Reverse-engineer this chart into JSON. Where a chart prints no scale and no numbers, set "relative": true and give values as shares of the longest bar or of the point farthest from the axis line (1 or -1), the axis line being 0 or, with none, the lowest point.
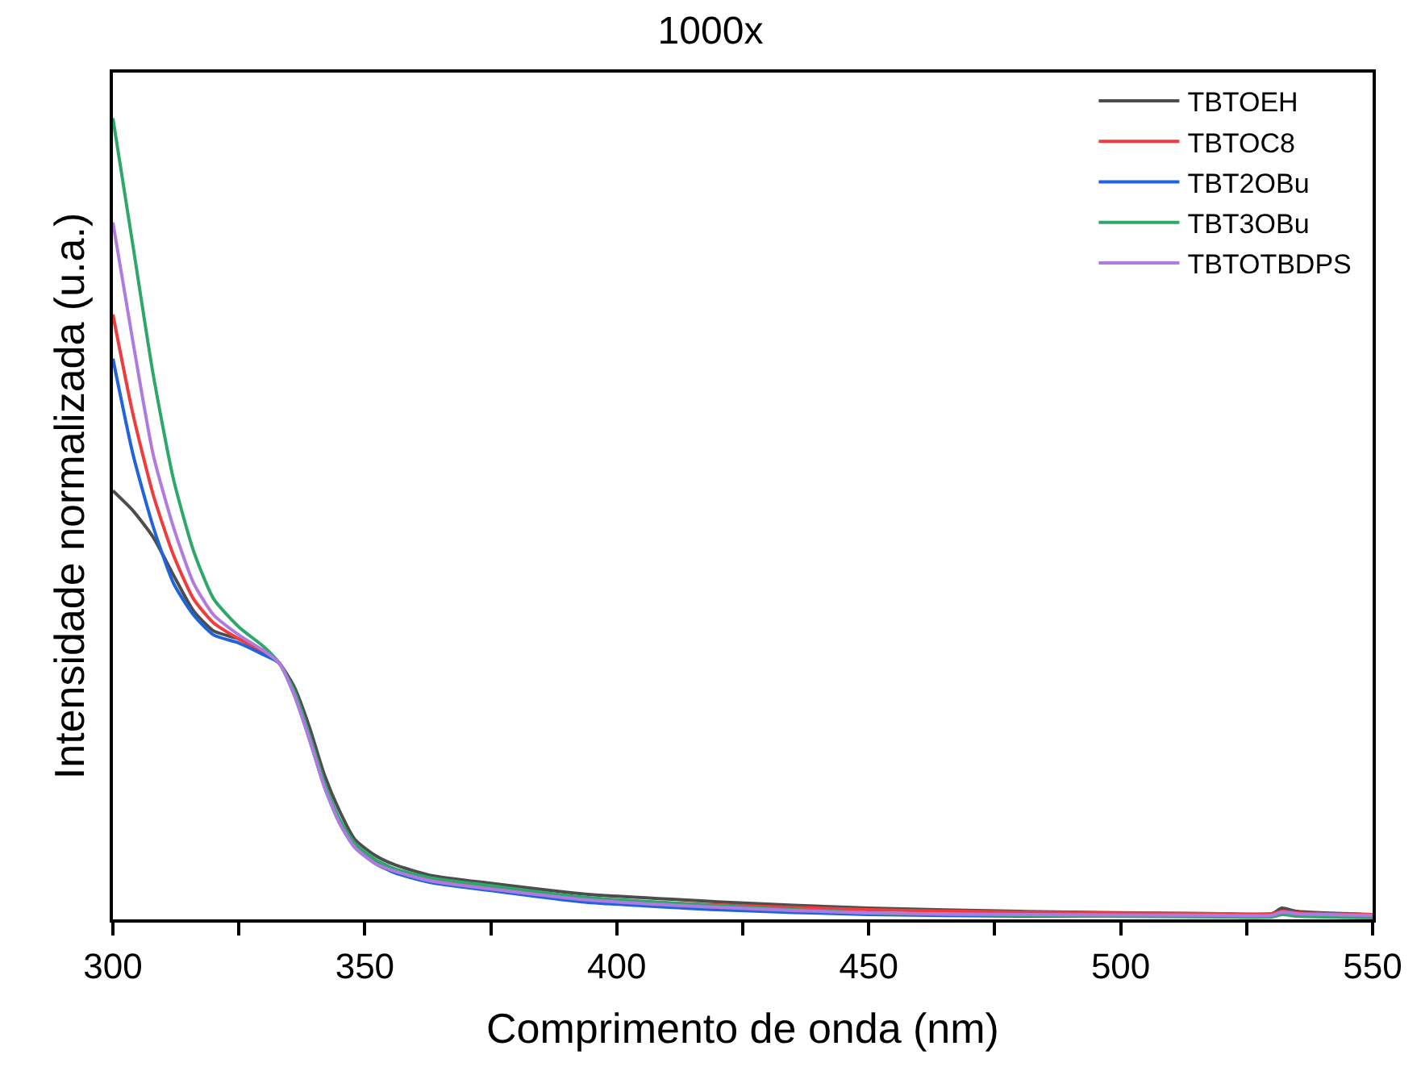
{
  "chart_data": {
    "type": "line",
    "title": "1000x",
    "xlabel": "Comprimento de onda (nm)",
    "ylabel": "Intensidade normalizada (u.a.)",
    "relative": true,
    "legend": "top right",
    "line_style": "solid",
    "marker": "none",
    "xlim": [
      300,
      550
    ],
    "xticks": [
      300,
      {
        "value": 325,
        "label": null
      },
      350,
      {
        "value": 375,
        "label": null
      },
      400,
      {
        "value": 425,
        "label": null
      },
      450,
      {
        "value": 475,
        "label": null
      },
      500,
      {
        "value": 525,
        "label": null
      },
      550
    ],
    "x": [
      300,
      304,
      308,
      312,
      316,
      320,
      325,
      330,
      333,
      336,
      339,
      342,
      345,
      348,
      352,
      356,
      363,
      375,
      393,
      420,
      450,
      480,
      520,
      530,
      532,
      535,
      550
    ],
    "series": [
      {
        "name": "TBTOEH",
        "color": "#4d4d4d",
        "values": [
          0.535,
          0.51,
          0.477,
          0.43,
          0.385,
          0.36,
          0.35,
          0.335,
          0.32,
          0.29,
          0.24,
          0.18,
          0.135,
          0.1,
          0.08,
          0.068,
          0.055,
          0.045,
          0.032,
          0.022,
          0.014,
          0.01,
          0.007,
          0.007,
          0.014,
          0.01,
          0.006
        ]
      },
      {
        "name": "TBTOC8",
        "color": "#f03c3c",
        "values": [
          0.755,
          0.63,
          0.53,
          0.455,
          0.4,
          0.37,
          0.35,
          0.333,
          0.32,
          0.282,
          0.228,
          0.168,
          0.122,
          0.092,
          0.072,
          0.061,
          0.049,
          0.039,
          0.026,
          0.018,
          0.012,
          0.009,
          0.007,
          0.007,
          0.01,
          0.008,
          0.006
        ]
      },
      {
        "name": "TBT2OBu",
        "color": "#1f64dc",
        "values": [
          0.7,
          0.58,
          0.49,
          0.42,
          0.38,
          0.355,
          0.345,
          0.33,
          0.32,
          0.28,
          0.225,
          0.165,
          0.12,
          0.09,
          0.07,
          0.058,
          0.046,
          0.036,
          0.022,
          0.012,
          0.006,
          0.004,
          0.004,
          null,
          null,
          null,
          null
        ]
      },
      {
        "name": "TBT3OBu",
        "color": "#2ea86a",
        "values": [
          1.0,
          0.84,
          0.68,
          0.55,
          0.46,
          0.4,
          0.365,
          0.34,
          0.32,
          0.285,
          0.23,
          0.17,
          0.125,
          0.095,
          0.075,
          0.063,
          0.052,
          0.042,
          0.028,
          0.017,
          0.008,
          0.005,
          0.003,
          0.003,
          0.006,
          0.004,
          0.002
        ]
      },
      {
        "name": "TBTOTBDPS",
        "color": "#b07ae0",
        "values": [
          0.87,
          0.72,
          0.58,
          0.49,
          0.42,
          0.38,
          0.355,
          0.335,
          0.32,
          0.28,
          0.225,
          0.165,
          0.12,
          0.09,
          0.07,
          0.06,
          0.048,
          0.038,
          0.025,
          0.015,
          0.008,
          0.006,
          0.005,
          0.005,
          0.009,
          0.007,
          0.005
        ]
      }
    ]
  }
}
